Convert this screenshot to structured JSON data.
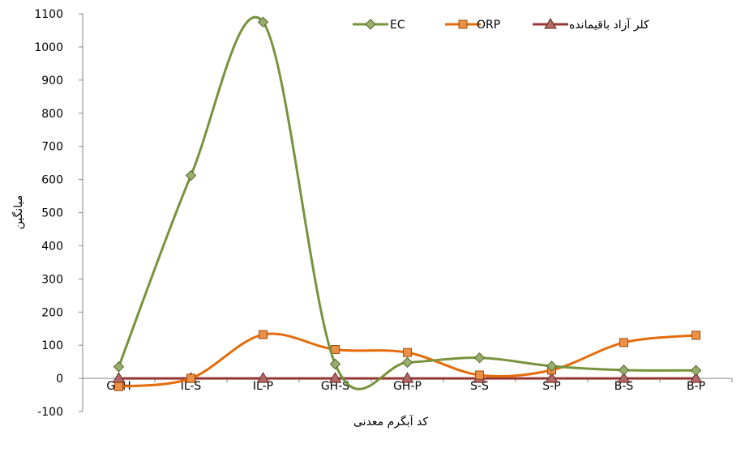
{
  "chart_data": {
    "type": "line",
    "title": "",
    "xlabel": "کد آبگرم معدنی",
    "ylabel": "میانگین",
    "categories": [
      "GSH",
      "IL-S",
      "IL-P",
      "GH-S",
      "GH-P",
      "S-S",
      "S-P",
      "B-S",
      "B-P"
    ],
    "ylim": [
      -100,
      1100
    ],
    "yticks": [
      -100,
      0,
      100,
      200,
      300,
      400,
      500,
      600,
      700,
      800,
      900,
      1000,
      1100
    ],
    "grid": false,
    "legend_position": "top-right",
    "series": [
      {
        "name": "EC",
        "color": "#77933C",
        "marker": "diamond",
        "values": [
          35,
          612,
          1075,
          43,
          48,
          62,
          37,
          25,
          24
        ]
      },
      {
        "name": "ORP",
        "color": "#E46C0A",
        "marker": "square",
        "values": [
          -25,
          0,
          132,
          87,
          78,
          10,
          25,
          108,
          130
        ]
      },
      {
        "name": "کلر آزاد باقیمانده",
        "color": "#953735",
        "marker": "triangle",
        "values": [
          0,
          0,
          0,
          0,
          0,
          0,
          0,
          0,
          0
        ]
      }
    ]
  }
}
